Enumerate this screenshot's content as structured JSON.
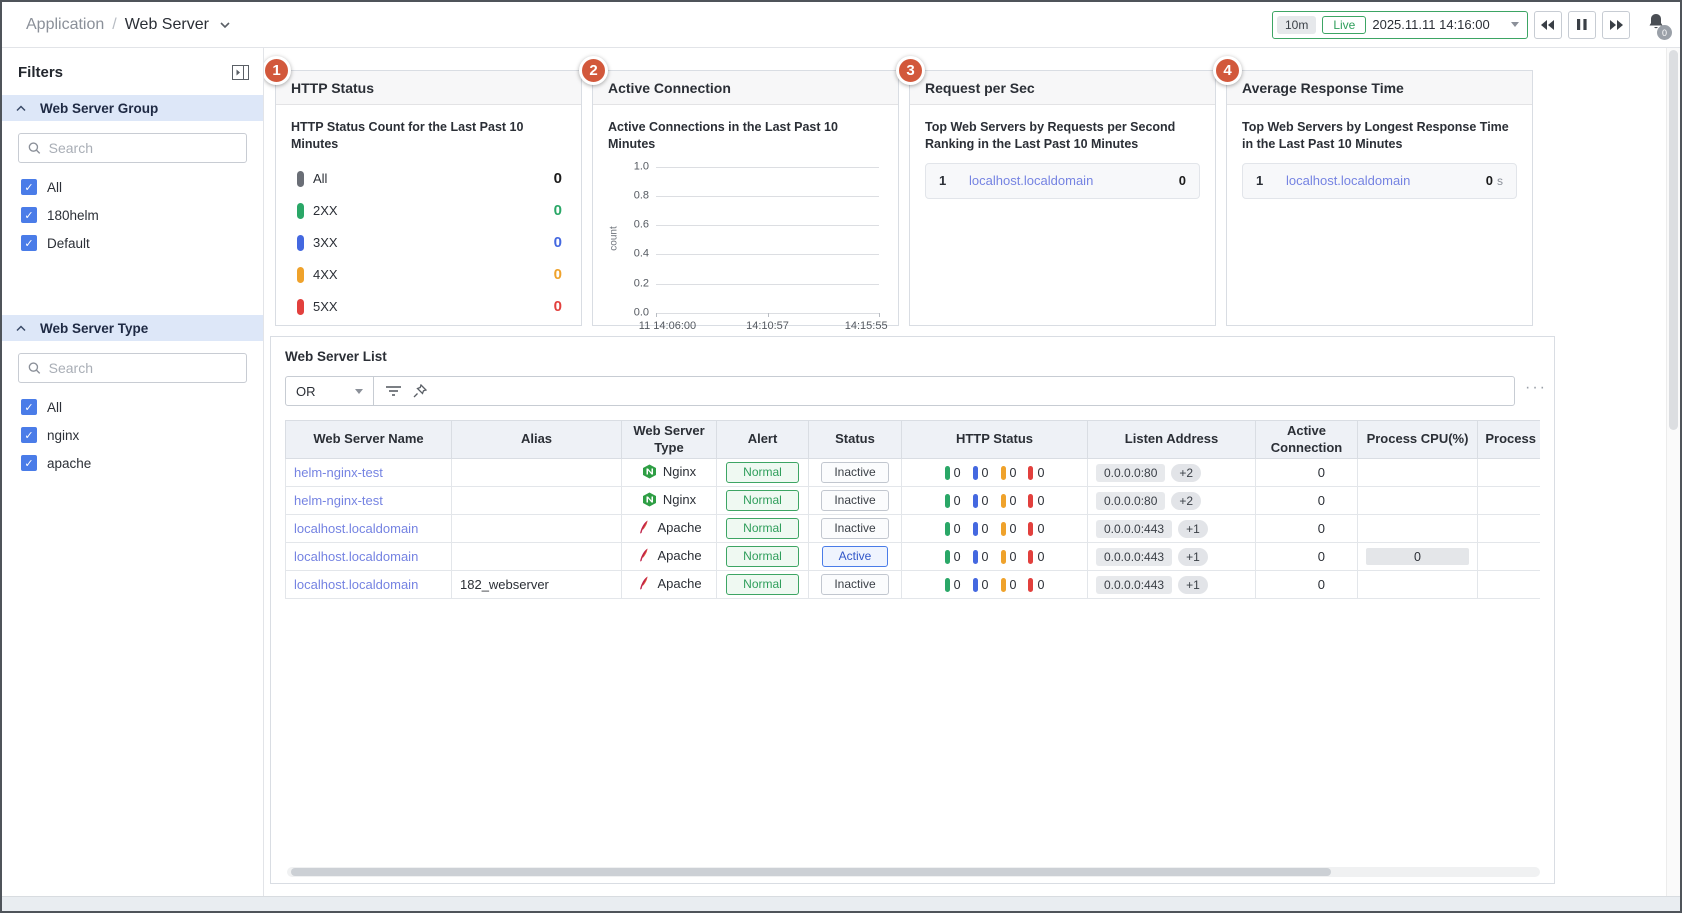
{
  "header": {
    "breadcrumb": {
      "section": "Application",
      "separator": "/",
      "page": "Web Server"
    },
    "time_control": {
      "range": "10m",
      "live": "Live",
      "datetime": "2025.11.11 14:16:00"
    },
    "notification_count": "0"
  },
  "sidebar": {
    "title": "Filters",
    "sections": [
      {
        "label": "Web Server Group",
        "search_placeholder": "Search",
        "options": [
          {
            "label": "All",
            "checked": true
          },
          {
            "label": "180helm",
            "checked": true
          },
          {
            "label": "Default",
            "checked": true
          }
        ]
      },
      {
        "label": "Web Server Type",
        "search_placeholder": "Search",
        "options": [
          {
            "label": "All",
            "checked": true
          },
          {
            "label": "nginx",
            "checked": true
          },
          {
            "label": "apache",
            "checked": true
          }
        ]
      }
    ]
  },
  "panels": {
    "http_status": {
      "badge": "1",
      "title": "HTTP Status",
      "subtitle": "HTTP Status Count for the Last Past 10 Minutes",
      "rows": [
        {
          "label": "All",
          "value": "0",
          "color": "#6a6e76",
          "value_color": "#1c1c1c"
        },
        {
          "label": "2XX",
          "value": "0",
          "color": "#2aa767",
          "value_color": "#2aa767"
        },
        {
          "label": "3XX",
          "value": "0",
          "color": "#4468e0",
          "value_color": "#4468e0"
        },
        {
          "label": "4XX",
          "value": "0",
          "color": "#efa22b",
          "value_color": "#efa22b"
        },
        {
          "label": "5XX",
          "value": "0",
          "color": "#e2403d",
          "value_color": "#e2403d"
        }
      ]
    },
    "active_connection": {
      "badge": "2",
      "title": "Active Connection",
      "subtitle": "Active Connections in the Last Past 10 Minutes",
      "chart_data": {
        "type": "line",
        "title": "Active Connections in the Last Past 10 Minutes",
        "ylabel": "count",
        "ylim": [
          0.0,
          1.0
        ],
        "yticks": [
          "1.0",
          "0.8",
          "0.6",
          "0.4",
          "0.2",
          "0.0"
        ],
        "xticks": [
          "11 14:06:00",
          "14:10:57",
          "14:15:55"
        ],
        "grid": true,
        "series": []
      }
    },
    "request_per_sec": {
      "badge": "3",
      "title": "Request per Sec",
      "subtitle": "Top Web Servers by Requests per Second Ranking in the Last Past 10 Minutes",
      "items": [
        {
          "rank": "1",
          "name": "localhost.localdomain",
          "value": "0",
          "unit": ""
        }
      ]
    },
    "avg_response_time": {
      "badge": "4",
      "title": "Average Response Time",
      "subtitle": "Top Web Servers by Longest Response Time in the Last Past 10 Minutes",
      "items": [
        {
          "rank": "1",
          "name": "localhost.localdomain",
          "value": "0",
          "unit": "s"
        }
      ]
    }
  },
  "web_server_list": {
    "title": "Web Server List",
    "filter": {
      "operator": "OR",
      "more_label": "···",
      "icons": [
        "filter-lines-icon",
        "pin-icon"
      ]
    },
    "columns": [
      "Web Server Name",
      "Alias",
      "Web Server Type",
      "Alert",
      "Status",
      "HTTP Status",
      "Listen Address",
      "Active Connection",
      "Process CPU(%)",
      "Process Me"
    ],
    "http_pill_colors": [
      "#2aa767",
      "#4468e0",
      "#efa22b",
      "#e2403d"
    ],
    "rows": [
      {
        "name": "helm-nginx-test",
        "alias": "",
        "type": "Nginx",
        "alert": "Normal",
        "status": "Inactive",
        "http_status": [
          "0",
          "0",
          "0",
          "0"
        ],
        "listen_address": "0.0.0.0:80",
        "listen_more": "+2",
        "active_connection": "0",
        "process_cpu": "",
        "process_mem": ""
      },
      {
        "name": "helm-nginx-test",
        "alias": "",
        "type": "Nginx",
        "alert": "Normal",
        "status": "Inactive",
        "http_status": [
          "0",
          "0",
          "0",
          "0"
        ],
        "listen_address": "0.0.0.0:80",
        "listen_more": "+2",
        "active_connection": "0",
        "process_cpu": "",
        "process_mem": ""
      },
      {
        "name": "localhost.localdomain",
        "alias": "",
        "type": "Apache",
        "alert": "Normal",
        "status": "Inactive",
        "http_status": [
          "0",
          "0",
          "0",
          "0"
        ],
        "listen_address": "0.0.0.0:443",
        "listen_more": "+1",
        "active_connection": "0",
        "process_cpu": "",
        "process_mem": ""
      },
      {
        "name": "localhost.localdomain",
        "alias": "",
        "type": "Apache",
        "alert": "Normal",
        "status": "Active",
        "http_status": [
          "0",
          "0",
          "0",
          "0"
        ],
        "listen_address": "0.0.0.0:443",
        "listen_more": "+1",
        "active_connection": "0",
        "process_cpu": "0",
        "process_mem": ""
      },
      {
        "name": "localhost.localdomain",
        "alias": "182_webserver",
        "type": "Apache",
        "alert": "Normal",
        "status": "Inactive",
        "http_status": [
          "0",
          "0",
          "0",
          "0"
        ],
        "listen_address": "0.0.0.0:443",
        "listen_more": "+1",
        "active_connection": "0",
        "process_cpu": "",
        "process_mem": ""
      }
    ]
  },
  "colors": {
    "accent_badge": "#d2583b",
    "link_blue": "#7583e2",
    "green": "#2aa767",
    "blue": "#4468e0",
    "amber": "#efa22b",
    "red": "#e2403d"
  }
}
